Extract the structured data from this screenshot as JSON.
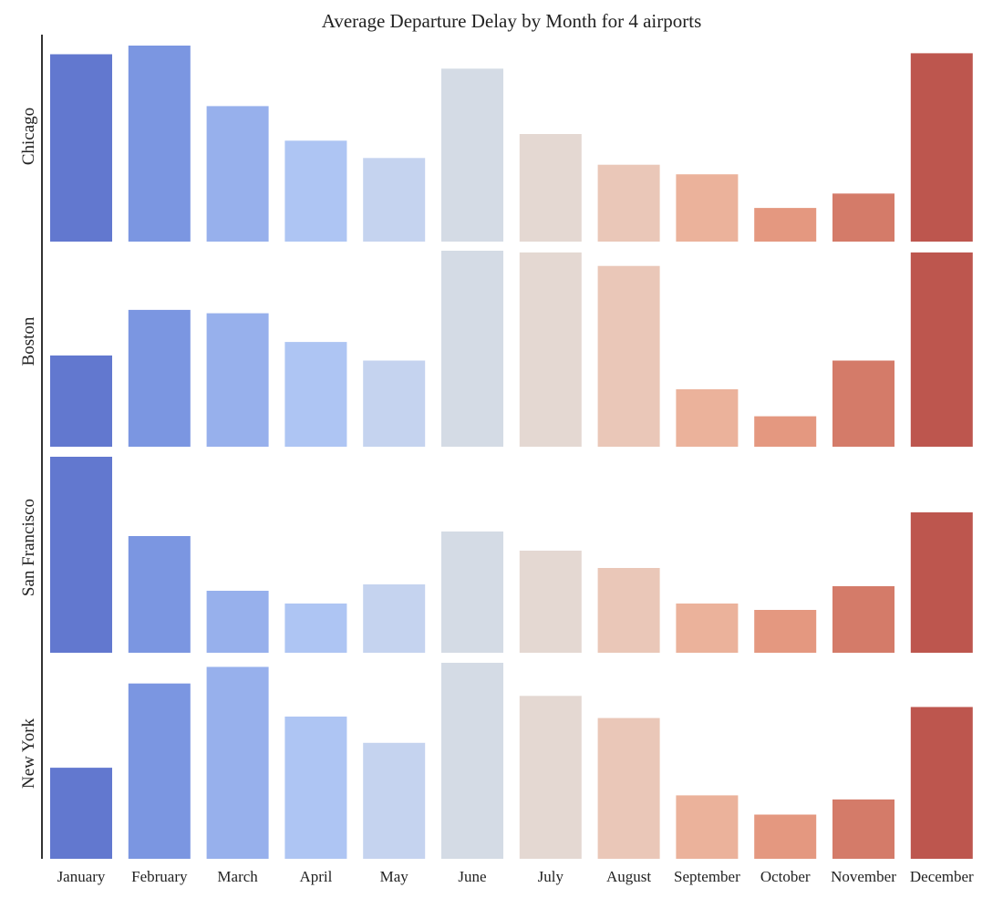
{
  "chart_data": {
    "type": "bar",
    "title": "Average Departure Delay by Month for 4 airports",
    "xlabel": "",
    "ylabel": "",
    "categories": [
      "January",
      "February",
      "March",
      "April",
      "May",
      "June",
      "July",
      "August",
      "September",
      "October",
      "November",
      "December"
    ],
    "colors": [
      "#6278cf",
      "#7b96e1",
      "#97b0ec",
      "#aec5f3",
      "#c5d3ef",
      "#d4dbe5",
      "#e4d8d2",
      "#eac7b8",
      "#ebb29b",
      "#e49880",
      "#d47b69",
      "#bd564e"
    ],
    "grid": false,
    "legend": "none",
    "shared_y_axis": false,
    "series": [
      {
        "name": "Chicago",
        "values": [
          19.5,
          20.4,
          14.1,
          10.5,
          8.7,
          18.0,
          11.2,
          8.0,
          7.0,
          3.5,
          5.0,
          19.6
        ]
      },
      {
        "name": "Boston",
        "values": [
          5.4,
          8.1,
          7.9,
          6.2,
          5.1,
          11.6,
          11.5,
          10.7,
          3.4,
          1.8,
          5.1,
          11.5
        ]
      },
      {
        "name": "San Francisco",
        "values": [
          21.5,
          12.8,
          6.8,
          5.4,
          7.5,
          13.3,
          11.2,
          9.3,
          5.4,
          4.7,
          7.3,
          15.4
        ]
      },
      {
        "name": "New York",
        "values": [
          6.6,
          12.7,
          13.9,
          10.3,
          8.4,
          14.2,
          11.8,
          10.2,
          4.6,
          3.2,
          4.3,
          11.0
        ]
      }
    ]
  }
}
